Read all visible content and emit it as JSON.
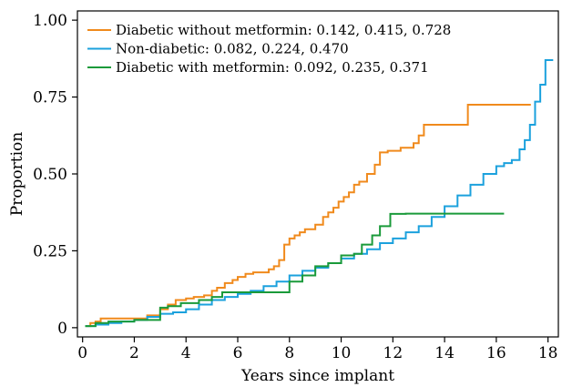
{
  "chart_data": {
    "type": "line",
    "xlabel": "Years since implant",
    "ylabel": "Proportion",
    "xlim": [
      -0.2,
      18.4
    ],
    "ylim": [
      -0.03,
      1.03
    ],
    "xticks": [
      0,
      2,
      4,
      6,
      8,
      10,
      12,
      14,
      16,
      18
    ],
    "xtick_labels": [
      "0",
      "2",
      "4",
      "6",
      "8",
      "10",
      "12",
      "14",
      "16",
      "18"
    ],
    "yticks": [
      0,
      0.25,
      0.5,
      0.75,
      1.0
    ],
    "ytick_labels": [
      "0",
      "0.25",
      "0.50",
      "0.75",
      "1.00"
    ],
    "grid": false,
    "legend_position": "top-left",
    "series": [
      {
        "name": "Diabetic without metformin: 0.142, 0.415, 0.728",
        "color": "#F08A1C",
        "step": true,
        "x": [
          0.1,
          0.3,
          0.5,
          0.7,
          1.0,
          2.0,
          2.5,
          3.0,
          3.3,
          3.6,
          4.0,
          4.3,
          4.7,
          5.0,
          5.2,
          5.5,
          5.8,
          6.0,
          6.3,
          6.6,
          7.0,
          7.2,
          7.4,
          7.6,
          7.8,
          8.0,
          8.2,
          8.4,
          8.6,
          9.0,
          9.3,
          9.5,
          9.7,
          9.9,
          10.1,
          10.3,
          10.5,
          10.7,
          11.0,
          11.3,
          11.5,
          11.8,
          12.3,
          12.8,
          13.0,
          13.2,
          14.0,
          14.5,
          14.9,
          15.5,
          16.0,
          17.3
        ],
        "y": [
          0.005,
          0.015,
          0.02,
          0.03,
          0.03,
          0.03,
          0.04,
          0.06,
          0.075,
          0.09,
          0.095,
          0.1,
          0.105,
          0.12,
          0.13,
          0.145,
          0.155,
          0.165,
          0.175,
          0.18,
          0.18,
          0.19,
          0.2,
          0.22,
          0.27,
          0.29,
          0.3,
          0.31,
          0.32,
          0.335,
          0.36,
          0.375,
          0.39,
          0.41,
          0.425,
          0.44,
          0.465,
          0.475,
          0.5,
          0.53,
          0.57,
          0.575,
          0.585,
          0.6,
          0.625,
          0.66,
          0.66,
          0.66,
          0.725,
          0.725,
          0.725,
          0.728
        ]
      },
      {
        "name": "Non-diabetic: 0.082, 0.224, 0.470",
        "color": "#1BA1DD",
        "step": true,
        "x": [
          0.1,
          0.5,
          1.0,
          1.5,
          2.0,
          2.5,
          3.0,
          3.5,
          4.0,
          4.5,
          5.0,
          5.5,
          6.0,
          6.5,
          7.0,
          7.5,
          8.0,
          8.5,
          9.0,
          9.5,
          10.0,
          10.5,
          11.0,
          11.5,
          12.0,
          12.5,
          13.0,
          13.5,
          14.0,
          14.5,
          15.0,
          15.5,
          16.0,
          16.3,
          16.6,
          16.9,
          17.1,
          17.3,
          17.5,
          17.7,
          17.9,
          18.2
        ],
        "y": [
          0.005,
          0.01,
          0.015,
          0.02,
          0.025,
          0.035,
          0.045,
          0.05,
          0.06,
          0.075,
          0.09,
          0.1,
          0.11,
          0.12,
          0.135,
          0.15,
          0.17,
          0.185,
          0.195,
          0.21,
          0.225,
          0.24,
          0.255,
          0.275,
          0.29,
          0.31,
          0.33,
          0.36,
          0.395,
          0.43,
          0.465,
          0.5,
          0.525,
          0.535,
          0.545,
          0.58,
          0.61,
          0.66,
          0.735,
          0.79,
          0.87,
          0.87
        ]
      },
      {
        "name": "Diabetic with metformin: 0.092, 0.235, 0.371",
        "color": "#1A9A3A",
        "step": true,
        "x": [
          0.1,
          0.5,
          1.0,
          2.0,
          3.0,
          3.3,
          3.8,
          4.5,
          5.0,
          5.4,
          6.0,
          7.0,
          8.0,
          8.5,
          9.0,
          9.5,
          10.0,
          10.5,
          10.8,
          11.2,
          11.5,
          11.9,
          12.5,
          14.0,
          16.3
        ],
        "y": [
          0.005,
          0.015,
          0.02,
          0.025,
          0.065,
          0.07,
          0.08,
          0.09,
          0.1,
          0.115,
          0.115,
          0.115,
          0.15,
          0.17,
          0.2,
          0.21,
          0.235,
          0.24,
          0.27,
          0.3,
          0.33,
          0.37,
          0.371,
          0.371,
          0.371
        ]
      }
    ]
  }
}
